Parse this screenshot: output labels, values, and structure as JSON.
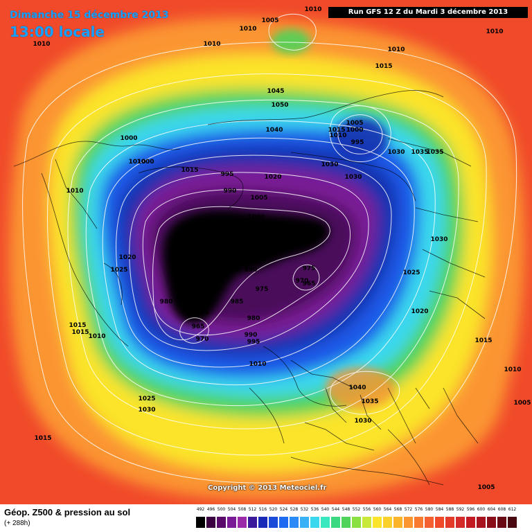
{
  "header": {
    "date": "Dimanche 15 décembre 2013",
    "time": "13:00 locale",
    "run": "Run GFS 12 Z du Mardi 3 décembre 2013"
  },
  "footer": {
    "title": "Géop. Z500 & pression au sol",
    "subtitle": "(+ 288h)",
    "copyright": "Copyright © 2013 Meteociel.fr"
  },
  "colors": {
    "outer": "#f04a2a",
    "orange": "#fb9530",
    "yellow": "#fbe42a",
    "green": "#4fd35a",
    "cyan": "#3ad8ee",
    "blue": "#1e5ae8",
    "navy": "#1430b0",
    "purple": "#7a1a96",
    "deep_purple": "#4a0a5a",
    "black": "#000000"
  },
  "legend": {
    "labels": [
      "492",
      "496",
      "500",
      "504",
      "508",
      "512",
      "516",
      "520",
      "524",
      "528",
      "532",
      "536",
      "540",
      "544",
      "548",
      "552",
      "556",
      "560",
      "564",
      "568",
      "572",
      "576",
      "580",
      "584",
      "588",
      "592",
      "596",
      "600",
      "604",
      "608",
      "612"
    ],
    "swatch_colors": [
      "#000000",
      "#3a0040",
      "#5a0a6a",
      "#7a1a96",
      "#9a2aa8",
      "#3a1a9a",
      "#1a2ab8",
      "#1a4ad8",
      "#1e6af0",
      "#2a8af8",
      "#3ab0f6",
      "#3ad8ee",
      "#3ae8c0",
      "#3ad880",
      "#4fd35a",
      "#8ae040",
      "#c8e83a",
      "#fbe42a",
      "#fbd02a",
      "#fbb42a",
      "#fb9530",
      "#f87a30",
      "#f46030",
      "#f04a2a",
      "#e43a2a",
      "#d42a2a",
      "#c41a24",
      "#a81420",
      "#8a0e1a",
      "#6a0a14",
      "#4a0810"
    ]
  },
  "pressure_labels": [
    "1010",
    "1005",
    "1010",
    "1010",
    "1010",
    "1010",
    "1015",
    "1045",
    "1050",
    "1010",
    "1040",
    "1015",
    "1000",
    "1010",
    "995",
    "1005",
    "1000",
    "1010",
    "1030",
    "1030",
    "1035",
    "1035",
    "1000",
    "1010",
    "1015",
    "995",
    "990",
    "1020",
    "1005",
    "1030",
    "1000",
    "1030",
    "1025",
    "1020",
    "975",
    "970",
    "965",
    "990",
    "990",
    "975",
    "985",
    "980",
    "980",
    "975",
    "965",
    "970",
    "990",
    "995",
    "1025",
    "1020",
    "1015",
    "1015",
    "1010",
    "1040",
    "1035",
    "1030",
    "1015",
    "1010",
    "1005",
    "1025",
    "1030",
    "1015",
    "1005",
    "1010"
  ]
}
